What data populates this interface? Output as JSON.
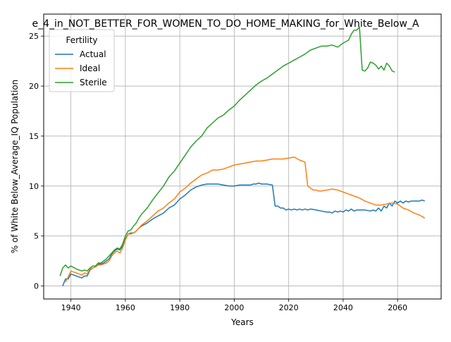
{
  "chart_data": {
    "type": "line",
    "title": "e_4_in_NOT_BETTER_FOR_WOMEN_TO_DO_HOME_MAKING_for_White_Below_A",
    "xlabel": "Years",
    "ylabel": "% of White Below_Average_IQ Population",
    "xlim": [
      1930,
      2076
    ],
    "ylim": [
      -1.3,
      27.2
    ],
    "xticks": [
      1940,
      1960,
      1980,
      2000,
      2020,
      2040,
      2060
    ],
    "yticks": [
      0,
      5,
      10,
      15,
      20,
      25
    ],
    "grid": true,
    "legend": {
      "title": "Fertility",
      "placement": "top-left"
    },
    "series": [
      {
        "name": "Actual",
        "color": "#1f77b4",
        "points": [
          [
            1937,
            0.0
          ],
          [
            1938,
            0.7
          ],
          [
            1939,
            0.7
          ],
          [
            1940,
            1.2
          ],
          [
            1942,
            1.0
          ],
          [
            1944,
            0.8
          ],
          [
            1945,
            1.0
          ],
          [
            1946,
            1.0
          ],
          [
            1947,
            1.6
          ],
          [
            1948,
            1.8
          ],
          [
            1949,
            1.9
          ],
          [
            1950,
            2.2
          ],
          [
            1951,
            2.2
          ],
          [
            1952,
            2.3
          ],
          [
            1953,
            2.5
          ],
          [
            1954,
            2.7
          ],
          [
            1955,
            3.2
          ],
          [
            1956,
            3.5
          ],
          [
            1957,
            3.7
          ],
          [
            1958,
            3.6
          ],
          [
            1959,
            4.0
          ],
          [
            1960,
            4.7
          ],
          [
            1961,
            5.2
          ],
          [
            1962,
            5.3
          ],
          [
            1963,
            5.3
          ],
          [
            1964,
            5.5
          ],
          [
            1965,
            5.8
          ],
          [
            1966,
            6.0
          ],
          [
            1968,
            6.3
          ],
          [
            1970,
            6.7
          ],
          [
            1972,
            7.0
          ],
          [
            1974,
            7.3
          ],
          [
            1976,
            7.8
          ],
          [
            1978,
            8.1
          ],
          [
            1980,
            8.7
          ],
          [
            1982,
            9.1
          ],
          [
            1984,
            9.6
          ],
          [
            1986,
            9.9
          ],
          [
            1988,
            10.1
          ],
          [
            1990,
            10.2
          ],
          [
            1992,
            10.2
          ],
          [
            1994,
            10.2
          ],
          [
            1996,
            10.1
          ],
          [
            1998,
            10.0
          ],
          [
            2000,
            10.0
          ],
          [
            2002,
            10.1
          ],
          [
            2004,
            10.1
          ],
          [
            2006,
            10.1
          ],
          [
            2007,
            10.2
          ],
          [
            2008,
            10.2
          ],
          [
            2009,
            10.3
          ],
          [
            2010,
            10.2
          ],
          [
            2012,
            10.2
          ],
          [
            2014,
            10.1
          ],
          [
            2015,
            8.0
          ],
          [
            2016,
            8.0
          ],
          [
            2017,
            7.8
          ],
          [
            2018,
            7.8
          ],
          [
            2019,
            7.6
          ],
          [
            2020,
            7.7
          ],
          [
            2021,
            7.6
          ],
          [
            2022,
            7.7
          ],
          [
            2023,
            7.6
          ],
          [
            2024,
            7.7
          ],
          [
            2025,
            7.6
          ],
          [
            2026,
            7.7
          ],
          [
            2027,
            7.6
          ],
          [
            2028,
            7.7
          ],
          [
            2030,
            7.6
          ],
          [
            2032,
            7.5
          ],
          [
            2034,
            7.4
          ],
          [
            2035,
            7.4
          ],
          [
            2036,
            7.3
          ],
          [
            2037,
            7.5
          ],
          [
            2038,
            7.4
          ],
          [
            2039,
            7.5
          ],
          [
            2040,
            7.4
          ],
          [
            2041,
            7.6
          ],
          [
            2042,
            7.5
          ],
          [
            2043,
            7.7
          ],
          [
            2044,
            7.5
          ],
          [
            2045,
            7.6
          ],
          [
            2046,
            7.6
          ],
          [
            2048,
            7.6
          ],
          [
            2050,
            7.5
          ],
          [
            2051,
            7.6
          ],
          [
            2052,
            7.5
          ],
          [
            2053,
            7.8
          ],
          [
            2054,
            7.5
          ],
          [
            2055,
            8.0
          ],
          [
            2056,
            7.8
          ],
          [
            2057,
            8.3
          ],
          [
            2058,
            8.0
          ],
          [
            2059,
            8.5
          ],
          [
            2060,
            8.3
          ],
          [
            2061,
            8.5
          ],
          [
            2062,
            8.3
          ],
          [
            2063,
            8.5
          ],
          [
            2064,
            8.4
          ],
          [
            2065,
            8.5
          ],
          [
            2066,
            8.5
          ],
          [
            2068,
            8.5
          ],
          [
            2069,
            8.6
          ],
          [
            2070,
            8.5
          ]
        ]
      },
      {
        "name": "Ideal",
        "color": "#ff7f0e",
        "points": [
          [
            1938,
            0.4
          ],
          [
            1939,
            0.9
          ],
          [
            1940,
            1.5
          ],
          [
            1942,
            1.3
          ],
          [
            1944,
            1.1
          ],
          [
            1945,
            1.3
          ],
          [
            1946,
            1.2
          ],
          [
            1947,
            1.7
          ],
          [
            1948,
            1.8
          ],
          [
            1949,
            1.9
          ],
          [
            1950,
            2.1
          ],
          [
            1951,
            2.1
          ],
          [
            1952,
            2.2
          ],
          [
            1953,
            2.3
          ],
          [
            1954,
            2.5
          ],
          [
            1955,
            3.0
          ],
          [
            1956,
            3.3
          ],
          [
            1957,
            3.5
          ],
          [
            1958,
            3.3
          ],
          [
            1959,
            3.8
          ],
          [
            1960,
            4.6
          ],
          [
            1961,
            5.2
          ],
          [
            1962,
            5.2
          ],
          [
            1963,
            5.3
          ],
          [
            1964,
            5.5
          ],
          [
            1965,
            5.8
          ],
          [
            1966,
            6.1
          ],
          [
            1968,
            6.5
          ],
          [
            1970,
            7.0
          ],
          [
            1972,
            7.5
          ],
          [
            1974,
            7.8
          ],
          [
            1976,
            8.3
          ],
          [
            1978,
            8.7
          ],
          [
            1980,
            9.4
          ],
          [
            1982,
            9.8
          ],
          [
            1984,
            10.3
          ],
          [
            1986,
            10.7
          ],
          [
            1988,
            11.1
          ],
          [
            1990,
            11.3
          ],
          [
            1992,
            11.6
          ],
          [
            1994,
            11.6
          ],
          [
            1996,
            11.7
          ],
          [
            1998,
            11.9
          ],
          [
            2000,
            12.1
          ],
          [
            2002,
            12.2
          ],
          [
            2004,
            12.3
          ],
          [
            2006,
            12.4
          ],
          [
            2008,
            12.5
          ],
          [
            2010,
            12.5
          ],
          [
            2012,
            12.6
          ],
          [
            2014,
            12.7
          ],
          [
            2016,
            12.7
          ],
          [
            2018,
            12.7
          ],
          [
            2020,
            12.8
          ],
          [
            2022,
            12.9
          ],
          [
            2024,
            12.6
          ],
          [
            2026,
            12.4
          ],
          [
            2027,
            10.0
          ],
          [
            2028,
            9.8
          ],
          [
            2029,
            9.6
          ],
          [
            2030,
            9.6
          ],
          [
            2031,
            9.5
          ],
          [
            2032,
            9.5
          ],
          [
            2034,
            9.6
          ],
          [
            2036,
            9.7
          ],
          [
            2038,
            9.6
          ],
          [
            2040,
            9.4
          ],
          [
            2042,
            9.2
          ],
          [
            2044,
            9.0
          ],
          [
            2046,
            8.8
          ],
          [
            2048,
            8.5
          ],
          [
            2050,
            8.3
          ],
          [
            2052,
            8.1
          ],
          [
            2054,
            8.1
          ],
          [
            2056,
            8.2
          ],
          [
            2058,
            8.3
          ],
          [
            2060,
            8.2
          ],
          [
            2062,
            7.8
          ],
          [
            2064,
            7.6
          ],
          [
            2066,
            7.3
          ],
          [
            2068,
            7.1
          ],
          [
            2070,
            6.8
          ]
        ]
      },
      {
        "name": "Sterile",
        "color": "#2ca02c",
        "points": [
          [
            1936,
            1.0
          ],
          [
            1937,
            1.8
          ],
          [
            1938,
            2.1
          ],
          [
            1939,
            1.8
          ],
          [
            1940,
            2.0
          ],
          [
            1942,
            1.7
          ],
          [
            1944,
            1.5
          ],
          [
            1945,
            1.6
          ],
          [
            1946,
            1.5
          ],
          [
            1947,
            1.8
          ],
          [
            1948,
            2.0
          ],
          [
            1949,
            2.0
          ],
          [
            1950,
            2.3
          ],
          [
            1951,
            2.3
          ],
          [
            1952,
            2.5
          ],
          [
            1953,
            2.7
          ],
          [
            1954,
            3.0
          ],
          [
            1955,
            3.3
          ],
          [
            1956,
            3.6
          ],
          [
            1957,
            3.8
          ],
          [
            1958,
            3.7
          ],
          [
            1959,
            4.2
          ],
          [
            1960,
            5.0
          ],
          [
            1961,
            5.5
          ],
          [
            1962,
            5.6
          ],
          [
            1963,
            6.0
          ],
          [
            1964,
            6.3
          ],
          [
            1965,
            6.8
          ],
          [
            1966,
            7.2
          ],
          [
            1968,
            7.8
          ],
          [
            1970,
            8.6
          ],
          [
            1972,
            9.3
          ],
          [
            1974,
            10.0
          ],
          [
            1976,
            10.9
          ],
          [
            1978,
            11.5
          ],
          [
            1980,
            12.3
          ],
          [
            1982,
            13.1
          ],
          [
            1984,
            13.9
          ],
          [
            1986,
            14.5
          ],
          [
            1988,
            15.0
          ],
          [
            1990,
            15.8
          ],
          [
            1992,
            16.3
          ],
          [
            1994,
            16.8
          ],
          [
            1996,
            17.1
          ],
          [
            1998,
            17.6
          ],
          [
            2000,
            18.0
          ],
          [
            2002,
            18.6
          ],
          [
            2004,
            19.1
          ],
          [
            2006,
            19.6
          ],
          [
            2008,
            20.1
          ],
          [
            2010,
            20.5
          ],
          [
            2012,
            20.8
          ],
          [
            2014,
            21.2
          ],
          [
            2016,
            21.6
          ],
          [
            2018,
            22.0
          ],
          [
            2020,
            22.3
          ],
          [
            2022,
            22.6
          ],
          [
            2024,
            22.9
          ],
          [
            2026,
            23.2
          ],
          [
            2028,
            23.6
          ],
          [
            2030,
            23.8
          ],
          [
            2032,
            24.0
          ],
          [
            2034,
            24.0
          ],
          [
            2036,
            24.1
          ],
          [
            2038,
            23.9
          ],
          [
            2040,
            24.3
          ],
          [
            2042,
            24.6
          ],
          [
            2043,
            25.2
          ],
          [
            2044,
            25.6
          ],
          [
            2045,
            25.6
          ],
          [
            2046,
            25.9
          ],
          [
            2047,
            21.6
          ],
          [
            2048,
            21.5
          ],
          [
            2049,
            21.8
          ],
          [
            2050,
            22.4
          ],
          [
            2051,
            22.3
          ],
          [
            2052,
            22.1
          ],
          [
            2053,
            21.7
          ],
          [
            2054,
            22.0
          ],
          [
            2055,
            21.6
          ],
          [
            2056,
            22.3
          ],
          [
            2057,
            22.0
          ],
          [
            2058,
            21.5
          ],
          [
            2059,
            21.4
          ]
        ]
      }
    ]
  }
}
